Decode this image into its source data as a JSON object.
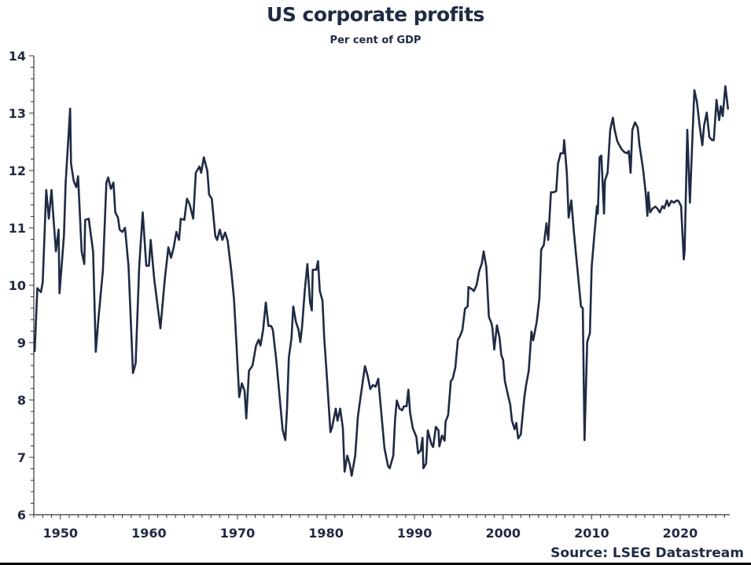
{
  "chart_data": {
    "type": "line",
    "title": "US corporate profits",
    "subtitle": "Per cent of GDP",
    "source": "Source: LSEG Datastream",
    "xlabel": "",
    "ylabel": "",
    "xlim": [
      1947,
      2025.6
    ],
    "ylim": [
      6,
      14
    ],
    "grid": false,
    "legend": "none",
    "x_ticks": [
      1950,
      1960,
      1970,
      1980,
      1990,
      2000,
      2010,
      2020
    ],
    "x_tick_labels": [
      "1950",
      "1960",
      "1970",
      "1980",
      "1990",
      "2000",
      "2010",
      "2020"
    ],
    "y_ticks": [
      6,
      7,
      8,
      9,
      10,
      11,
      12,
      13,
      14
    ],
    "y_tick_labels": [
      "6",
      "7",
      "8",
      "9",
      "10",
      "11",
      "12",
      "13",
      "14"
    ],
    "line_color": "#1f2a44",
    "series": [
      {
        "name": "US corporate profits, % of GDP",
        "x": [
          1947.1,
          1947.4,
          1947.8,
          1948.0,
          1948.4,
          1948.7,
          1949.0,
          1949.2,
          1949.5,
          1949.8,
          1949.9,
          1950.4,
          1950.6,
          1951.1,
          1951.2,
          1951.5,
          1951.8,
          1952.0,
          1952.4,
          1952.7,
          1952.8,
          1953.2,
          1953.7,
          1954.0,
          1954.3,
          1954.8,
          1955.2,
          1955.4,
          1955.7,
          1956.0,
          1956.2,
          1956.5,
          1956.7,
          1957.0,
          1957.3,
          1957.7,
          1958.2,
          1958.5,
          1958.9,
          1959.3,
          1959.7,
          1960.0,
          1960.2,
          1960.6,
          1961.3,
          1961.6,
          1961.8,
          1962.2,
          1962.5,
          1962.8,
          1963.1,
          1963.4,
          1963.6,
          1964.0,
          1964.3,
          1964.6,
          1965.0,
          1965.3,
          1965.7,
          1965.9,
          1966.2,
          1966.6,
          1966.8,
          1967.1,
          1967.5,
          1967.7,
          1968.0,
          1968.3,
          1968.6,
          1968.9,
          1969.3,
          1969.6,
          1969.9,
          1970.2,
          1970.5,
          1970.8,
          1971.0,
          1971.3,
          1971.7,
          1972.1,
          1972.4,
          1972.6,
          1972.9,
          1973.2,
          1973.5,
          1973.8,
          1974.0,
          1974.4,
          1974.8,
          1975.1,
          1975.4,
          1975.6,
          1975.8,
          1976.1,
          1976.3,
          1976.6,
          1976.9,
          1977.1,
          1977.3,
          1977.6,
          1977.9,
          1978.2,
          1978.4,
          1978.5,
          1978.9,
          1979.1,
          1979.3,
          1979.6,
          1979.8,
          1980.1,
          1980.5,
          1980.7,
          1981.1,
          1981.3,
          1981.6,
          1981.9,
          1982.1,
          1982.4,
          1982.7,
          1982.9,
          1983.3,
          1983.6,
          1983.9,
          1984.4,
          1984.7,
          1985.0,
          1985.3,
          1985.6,
          1985.9,
          1986.2,
          1986.6,
          1987.0,
          1987.2,
          1987.6,
          1987.8,
          1988.0,
          1988.3,
          1988.6,
          1988.8,
          1989.1,
          1989.3,
          1989.5,
          1989.8,
          1990.2,
          1990.4,
          1990.7,
          1990.9,
          1991.0,
          1991.3,
          1991.5,
          1991.9,
          1992.1,
          1992.4,
          1992.7,
          1992.8,
          1993.1,
          1993.4,
          1993.5,
          1993.8,
          1994.1,
          1994.3,
          1994.6,
          1994.9,
          1995.1,
          1995.4,
          1995.7,
          1996.0,
          1996.1,
          1996.5,
          1996.7,
          1997.0,
          1997.3,
          1997.6,
          1997.8,
          1998.1,
          1998.4,
          1998.7,
          1998.8,
          1999.0,
          1999.3,
          1999.6,
          1999.8,
          2000.0,
          2000.2,
          2000.5,
          2000.8,
          2001.0,
          2001.3,
          2001.5,
          2001.7,
          2002.0,
          2002.4,
          2002.6,
          2002.9,
          2003.2,
          2003.4,
          2003.8,
          2004.1,
          2004.3,
          2004.6,
          2004.9,
          2005.1,
          2005.4,
          2005.7,
          2006.0,
          2006.2,
          2006.5,
          2006.8,
          2006.9,
          2007.2,
          2007.4,
          2007.7,
          2008.0,
          2008.2,
          2008.5,
          2008.8,
          2009.0,
          2009.2,
          2009.5,
          2009.8,
          2010.0,
          2010.3,
          2010.6,
          2010.7,
          2010.9,
          2011.1,
          2011.4,
          2011.5,
          2011.8,
          2012.1,
          2012.4,
          2012.6,
          2012.9,
          2013.2,
          2013.4,
          2013.7,
          2014.0,
          2014.2,
          2014.4,
          2014.6,
          2014.9,
          2015.2,
          2015.4,
          2015.8,
          2016.1,
          2016.3,
          2016.4,
          2016.6,
          2016.9,
          2017.2,
          2017.4,
          2017.7,
          2018.0,
          2018.2,
          2018.5,
          2018.7,
          2019.0,
          2019.3,
          2019.6,
          2019.8,
          2020.1,
          2020.4,
          2020.5,
          2020.8,
          2021.1,
          2021.4,
          2021.6,
          2021.9,
          2022.2,
          2022.5,
          2022.7,
          2023.0,
          2023.3,
          2023.6,
          2023.8,
          2024.1,
          2024.4,
          2024.6,
          2024.8,
          2025.1,
          2025.4
        ],
        "values": [
          8.85,
          9.95,
          9.88,
          10.05,
          11.66,
          11.16,
          11.66,
          11.21,
          10.59,
          10.97,
          9.86,
          10.86,
          11.79,
          13.08,
          12.12,
          11.82,
          11.71,
          11.9,
          10.59,
          10.37,
          11.14,
          11.16,
          10.59,
          8.84,
          9.42,
          10.25,
          11.79,
          11.88,
          11.68,
          11.79,
          11.27,
          11.18,
          10.97,
          10.93,
          11.0,
          10.32,
          8.47,
          8.64,
          10.32,
          11.27,
          10.34,
          10.34,
          10.79,
          10.11,
          9.25,
          9.77,
          10.11,
          10.66,
          10.48,
          10.66,
          10.93,
          10.79,
          11.16,
          11.14,
          11.51,
          11.41,
          11.16,
          11.96,
          12.07,
          11.96,
          12.23,
          11.99,
          11.58,
          11.51,
          10.86,
          10.79,
          10.97,
          10.79,
          10.92,
          10.77,
          10.25,
          9.77,
          8.95,
          8.05,
          8.29,
          8.16,
          7.68,
          8.51,
          8.6,
          8.95,
          9.05,
          8.95,
          9.22,
          9.7,
          9.29,
          9.29,
          9.22,
          8.67,
          7.99,
          7.48,
          7.3,
          7.85,
          8.74,
          9.08,
          9.63,
          9.36,
          9.22,
          9.01,
          9.29,
          9.9,
          10.37,
          9.7,
          9.56,
          10.27,
          10.27,
          10.42,
          9.9,
          9.73,
          9.08,
          8.4,
          7.44,
          7.53,
          7.85,
          7.64,
          7.85,
          7.51,
          6.75,
          7.03,
          6.86,
          6.68,
          7.03,
          7.71,
          8.05,
          8.59,
          8.42,
          8.19,
          8.26,
          8.23,
          8.37,
          7.85,
          7.16,
          6.85,
          6.81,
          7.03,
          7.66,
          7.99,
          7.85,
          7.82,
          7.89,
          7.89,
          8.18,
          7.78,
          7.51,
          7.36,
          7.07,
          7.12,
          7.34,
          6.81,
          6.89,
          7.47,
          7.23,
          7.18,
          7.53,
          7.47,
          7.19,
          7.38,
          7.29,
          7.62,
          7.74,
          8.33,
          8.37,
          8.56,
          9.05,
          9.1,
          9.22,
          9.59,
          9.63,
          9.97,
          9.93,
          9.9,
          10.0,
          10.25,
          10.38,
          10.59,
          10.32,
          9.45,
          9.33,
          9.25,
          8.88,
          9.3,
          9.08,
          8.78,
          8.7,
          8.33,
          8.12,
          7.92,
          7.64,
          7.49,
          7.6,
          7.33,
          7.4,
          8.05,
          8.26,
          8.51,
          9.19,
          9.04,
          9.36,
          9.77,
          10.62,
          10.7,
          11.08,
          10.79,
          11.62,
          11.62,
          11.64,
          12.12,
          12.3,
          12.3,
          12.53,
          11.96,
          11.18,
          11.48,
          10.93,
          10.59,
          10.11,
          9.63,
          9.6,
          7.3,
          9.01,
          9.16,
          10.32,
          10.86,
          11.38,
          11.25,
          12.23,
          12.26,
          11.25,
          11.82,
          11.96,
          12.71,
          12.92,
          12.71,
          12.51,
          12.42,
          12.37,
          12.32,
          12.3,
          12.34,
          11.96,
          12.71,
          12.84,
          12.75,
          12.44,
          12.03,
          11.62,
          11.21,
          11.62,
          11.27,
          11.34,
          11.37,
          11.34,
          11.27,
          11.38,
          11.34,
          11.48,
          11.38,
          11.47,
          11.44,
          11.48,
          11.47,
          11.38,
          10.45,
          10.59,
          12.71,
          11.44,
          12.64,
          13.4,
          13.19,
          12.78,
          12.44,
          12.78,
          13.01,
          12.58,
          12.53,
          12.53,
          13.23,
          12.88,
          13.12,
          12.95,
          13.47,
          13.08
        ]
      }
    ]
  }
}
